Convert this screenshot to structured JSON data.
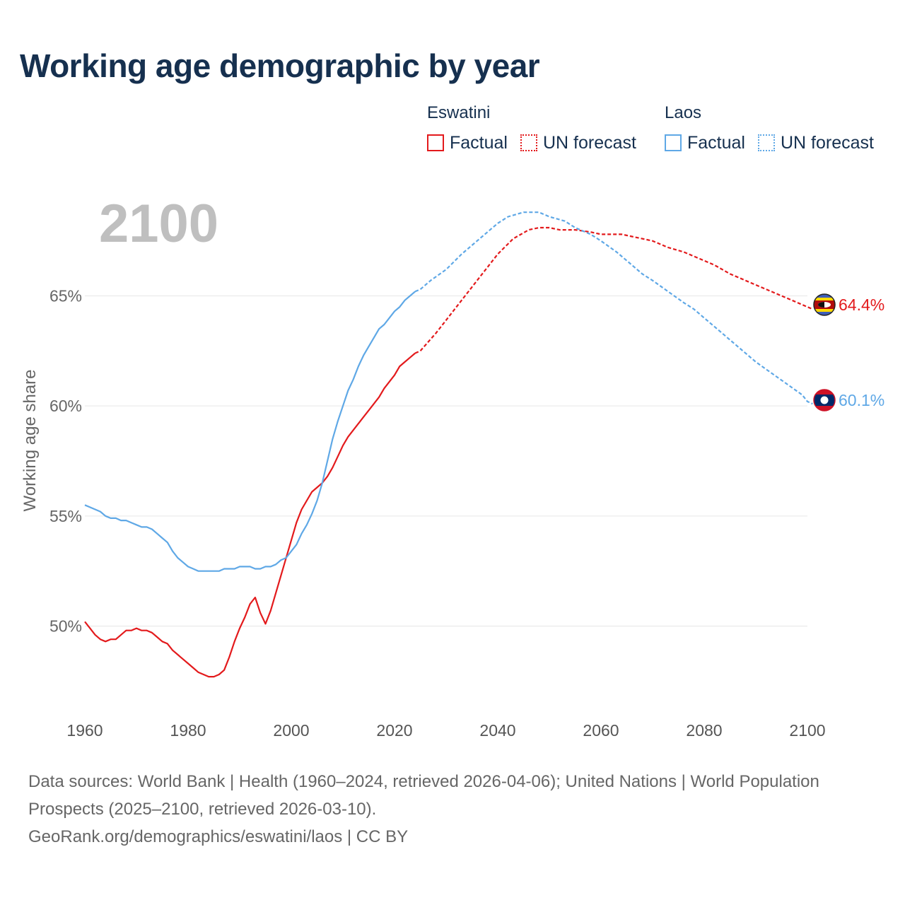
{
  "header": {
    "title": "Working age demographic by year",
    "big_year": "2100"
  },
  "legend": {
    "groups": [
      {
        "country": "Eswatini",
        "factual_label": "Factual",
        "forecast_label": "UN forecast",
        "color": "#e31a1c"
      },
      {
        "country": "Laos",
        "factual_label": "Factual",
        "forecast_label": "UN forecast",
        "color": "#5fa8e6"
      }
    ]
  },
  "footer": {
    "sources": "Data sources: World Bank | Health (1960–2024, retrieved 2026-04-06); United Nations | World Population Prospects (2025–2100, retrieved 2026-03-10).",
    "credit": "GeoRank.org/demographics/eswatini/laos | CC BY"
  },
  "chart_data": {
    "type": "line",
    "title": "Working age demographic by year",
    "xlabel": "",
    "ylabel": "Working age share",
    "xlim": [
      1960,
      2100
    ],
    "ylim": [
      46,
      69
    ],
    "x_ticks": [
      1960,
      1980,
      2000,
      2020,
      2040,
      2060,
      2080,
      2100
    ],
    "y_ticks": [
      50,
      55,
      60,
      65
    ],
    "y_tick_labels": [
      "50%",
      "55%",
      "60%",
      "65%"
    ],
    "x_tick_labels": [
      "1960",
      "1980",
      "2000",
      "2020",
      "2040",
      "2060",
      "2080",
      "2100"
    ],
    "grid": true,
    "series": [
      {
        "name": "Eswatini",
        "color": "#e31a1c",
        "end_label": "64.4%",
        "flag": "eswatini-flag",
        "factual": {
          "x": [
            1960,
            1961,
            1962,
            1963,
            1964,
            1965,
            1966,
            1967,
            1968,
            1969,
            1970,
            1971,
            1972,
            1973,
            1974,
            1975,
            1976,
            1977,
            1978,
            1979,
            1980,
            1981,
            1982,
            1983,
            1984,
            1985,
            1986,
            1987,
            1988,
            1989,
            1990,
            1991,
            1992,
            1993,
            1994,
            1995,
            1996,
            1997,
            1998,
            1999,
            2000,
            2001,
            2002,
            2003,
            2004,
            2005,
            2006,
            2007,
            2008,
            2009,
            2010,
            2011,
            2012,
            2013,
            2014,
            2015,
            2016,
            2017,
            2018,
            2019,
            2020,
            2021,
            2022,
            2023,
            2024
          ],
          "y": [
            50.2,
            49.9,
            49.6,
            49.4,
            49.3,
            49.4,
            49.4,
            49.6,
            49.8,
            49.8,
            49.9,
            49.8,
            49.8,
            49.7,
            49.5,
            49.3,
            49.2,
            48.9,
            48.7,
            48.5,
            48.3,
            48.1,
            47.9,
            47.8,
            47.7,
            47.7,
            47.8,
            48.0,
            48.6,
            49.3,
            49.9,
            50.4,
            51.0,
            51.3,
            50.6,
            50.1,
            50.7,
            51.5,
            52.3,
            53.1,
            53.9,
            54.7,
            55.3,
            55.7,
            56.1,
            56.3,
            56.5,
            56.8,
            57.2,
            57.7,
            58.2,
            58.6,
            58.9,
            59.2,
            59.5,
            59.8,
            60.1,
            60.4,
            60.8,
            61.1,
            61.4,
            61.8,
            62.0,
            62.2,
            62.4
          ]
        },
        "forecast": {
          "x": [
            2024,
            2025,
            2028,
            2030,
            2033,
            2036,
            2040,
            2043,
            2046,
            2048,
            2050,
            2052,
            2055,
            2058,
            2060,
            2064,
            2066,
            2070,
            2073,
            2076,
            2078,
            2082,
            2085,
            2088,
            2090,
            2093,
            2095,
            2097,
            2100,
            2101
          ],
          "y": [
            62.4,
            62.5,
            63.3,
            63.9,
            64.8,
            65.7,
            66.9,
            67.6,
            68.0,
            68.1,
            68.1,
            68.0,
            68.0,
            67.9,
            67.8,
            67.8,
            67.7,
            67.5,
            67.2,
            67.0,
            66.8,
            66.4,
            66.0,
            65.7,
            65.5,
            65.2,
            65.0,
            64.8,
            64.5,
            64.4
          ]
        }
      },
      {
        "name": "Laos",
        "color": "#5fa8e6",
        "end_label": "60.1%",
        "flag": "laos-flag",
        "factual": {
          "x": [
            1960,
            1961,
            1962,
            1963,
            1964,
            1965,
            1966,
            1967,
            1968,
            1969,
            1970,
            1971,
            1972,
            1973,
            1974,
            1975,
            1976,
            1977,
            1978,
            1979,
            1980,
            1981,
            1982,
            1983,
            1984,
            1985,
            1986,
            1987,
            1988,
            1989,
            1990,
            1991,
            1992,
            1993,
            1994,
            1995,
            1996,
            1997,
            1998,
            1999,
            2000,
            2001,
            2002,
            2003,
            2004,
            2005,
            2006,
            2007,
            2008,
            2009,
            2010,
            2011,
            2012,
            2013,
            2014,
            2015,
            2016,
            2017,
            2018,
            2019,
            2020,
            2021,
            2022,
            2023,
            2024
          ],
          "y": [
            55.5,
            55.4,
            55.3,
            55.2,
            55.0,
            54.9,
            54.9,
            54.8,
            54.8,
            54.7,
            54.6,
            54.5,
            54.5,
            54.4,
            54.2,
            54.0,
            53.8,
            53.4,
            53.1,
            52.9,
            52.7,
            52.6,
            52.5,
            52.5,
            52.5,
            52.5,
            52.5,
            52.6,
            52.6,
            52.6,
            52.7,
            52.7,
            52.7,
            52.6,
            52.6,
            52.7,
            52.7,
            52.8,
            53.0,
            53.1,
            53.4,
            53.7,
            54.2,
            54.6,
            55.1,
            55.7,
            56.5,
            57.5,
            58.5,
            59.3,
            60.0,
            60.7,
            61.2,
            61.8,
            62.3,
            62.7,
            63.1,
            63.5,
            63.7,
            64.0,
            64.3,
            64.5,
            64.8,
            65.0,
            65.2
          ]
        },
        "forecast": {
          "x": [
            2024,
            2025,
            2027,
            2030,
            2033,
            2036,
            2040,
            2042,
            2045,
            2048,
            2050,
            2053,
            2055,
            2058,
            2060,
            2063,
            2066,
            2068,
            2070,
            2073,
            2076,
            2078,
            2080,
            2083,
            2086,
            2090,
            2093,
            2096,
            2099,
            2100,
            2101
          ],
          "y": [
            65.2,
            65.3,
            65.7,
            66.2,
            66.9,
            67.5,
            68.3,
            68.6,
            68.8,
            68.8,
            68.6,
            68.4,
            68.1,
            67.8,
            67.5,
            67.0,
            66.4,
            66.0,
            65.7,
            65.2,
            64.7,
            64.4,
            64.0,
            63.4,
            62.8,
            62.0,
            61.5,
            61.0,
            60.5,
            60.2,
            60.1
          ]
        }
      }
    ]
  }
}
